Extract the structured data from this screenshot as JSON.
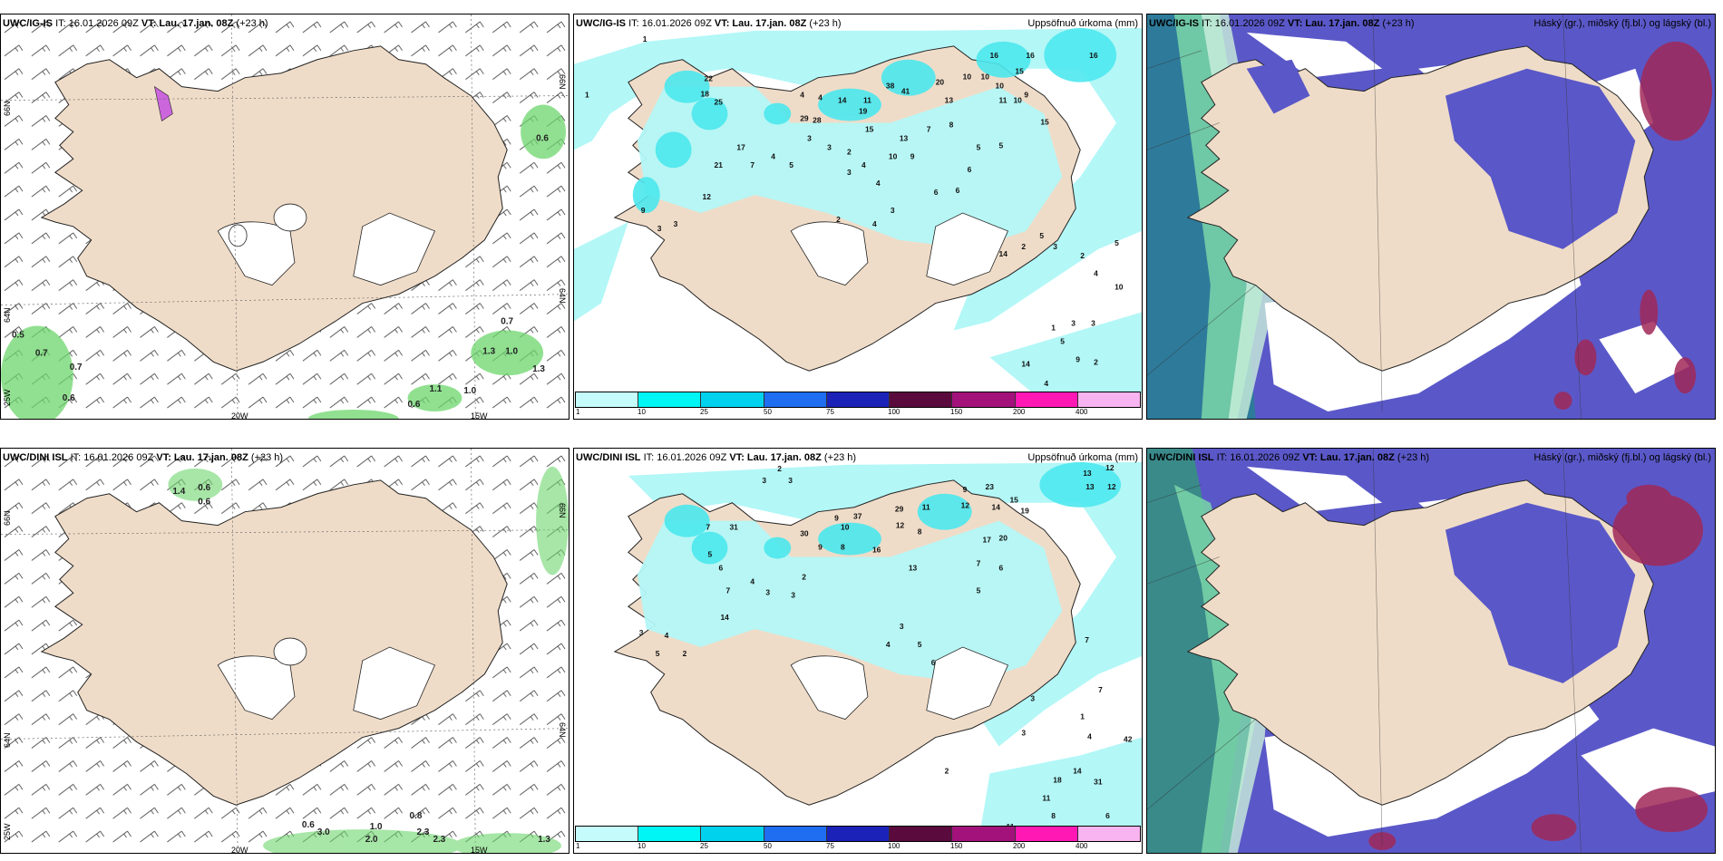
{
  "panels": {
    "p1": {
      "model": "UWC/IG-IS",
      "it": "IT: 16.01.2026 09Z",
      "vt": "VT: Lau. 17.jan. 08Z",
      "lead": "(+23 h)",
      "right": ""
    },
    "p2": {
      "model": "UWC/IG-IS",
      "it": "IT: 16.01.2026 09Z",
      "vt": "VT: Lau. 17.jan. 08Z",
      "lead": "(+23 h)",
      "right": "Uppsöfnuð úrkoma (mm)"
    },
    "p3": {
      "model": "UWC/IG-IS",
      "it": "IT: 16.01.2026 09Z",
      "vt": "VT: Lau. 17.jan. 08Z",
      "lead": "(+23 h)",
      "right": "Háský (gr.), miðský (fj.bl.) og lágský (bl.)"
    },
    "p4": {
      "model": "UWC/DINI ISL",
      "it": "IT: 16.01.2026 09Z",
      "vt": "VT: Lau. 17.jan. 08Z",
      "lead": "(+23 h)",
      "right": ""
    },
    "p5": {
      "model": "UWC/DINI ISL",
      "it": "IT: 16.01.2026 09Z",
      "vt": "VT: Lau. 17.jan. 08Z",
      "lead": "(+23 h)",
      "right": "Uppsöfnuð úrkoma (mm)"
    },
    "p6": {
      "model": "UWC/DINI ISL",
      "it": "IT: 16.01.2026 09Z",
      "vt": "VT: Lau. 17.jan. 08Z",
      "lead": "(+23 h)",
      "right": "Háský (gr.), miðský (fj.bl.) og lágský (bl.)"
    }
  },
  "axes": {
    "lat66": "66N",
    "lat64": "64N",
    "lon25": "25W",
    "lon20": "20W",
    "lon15": "15W"
  },
  "legend": {
    "ticks": [
      "1",
      "10",
      "25",
      "50",
      "75",
      "100",
      "150",
      "200",
      "400"
    ],
    "colors": [
      "#c6fbfb",
      "#00f5f5",
      "#00d2ee",
      "#1f6df0",
      "#1b22b8",
      "#5a0a3c",
      "#a3127b",
      "#ff18b4",
      "#f8b4f0"
    ]
  },
  "colors": {
    "land": "#efdcc8",
    "precip_light": "#b3f7f7",
    "precip_mid": "#4ce8ee",
    "cloud_high": "#5a58c8",
    "cloud_low": "#4090e0",
    "cloud_mid": "#7ad6a8",
    "cloud_dark": "#a02858",
    "green": "#6cd66c"
  },
  "p1_values": [
    "0.6",
    "0.5",
    "0.7",
    "0.7",
    "0.6",
    "0.7",
    "1.3",
    "1.0",
    "1.1",
    "1.0",
    "0.6",
    "1.3"
  ],
  "p4_values": [
    "1.4",
    "0.6",
    "0.6",
    "0.6",
    "0.8",
    "1.0",
    "2.3",
    "2.0",
    "2.3",
    "1.3",
    "3.0"
  ],
  "p2_values": [
    "1",
    "1",
    "16",
    "16",
    "16",
    "15",
    "15",
    "10",
    "10",
    "10",
    "11",
    "10",
    "9",
    "18",
    "38",
    "41",
    "22",
    "20",
    "13",
    "14",
    "11",
    "19",
    "15",
    "13",
    "10",
    "9",
    "8",
    "7",
    "5",
    "5",
    "6",
    "6",
    "6",
    "4",
    "29",
    "28",
    "25",
    "4",
    "3",
    "3",
    "2",
    "4",
    "3",
    "4",
    "4",
    "2",
    "3",
    "12",
    "17",
    "21",
    "7",
    "4",
    "5",
    "3",
    "9",
    "3",
    "14",
    "2",
    "5",
    "3",
    "2",
    "4",
    "5",
    "1",
    "3",
    "3",
    "10",
    "5",
    "9",
    "14",
    "2",
    "4"
  ],
  "p5_values": [
    "2",
    "3",
    "3",
    "13",
    "12",
    "13",
    "12",
    "23",
    "14",
    "12",
    "19",
    "15",
    "17",
    "20",
    "31",
    "9",
    "7",
    "37",
    "29",
    "12",
    "10",
    "11",
    "9",
    "8",
    "7",
    "6",
    "5",
    "13",
    "16",
    "30",
    "9",
    "8",
    "5",
    "6",
    "7",
    "4",
    "3",
    "3",
    "2",
    "14",
    "3",
    "4",
    "5",
    "2",
    "3",
    "4",
    "5",
    "6",
    "7",
    "42",
    "18",
    "14",
    "31",
    "11",
    "8",
    "2",
    "6",
    "11",
    "7",
    "3",
    "1",
    "4",
    "3"
  ]
}
